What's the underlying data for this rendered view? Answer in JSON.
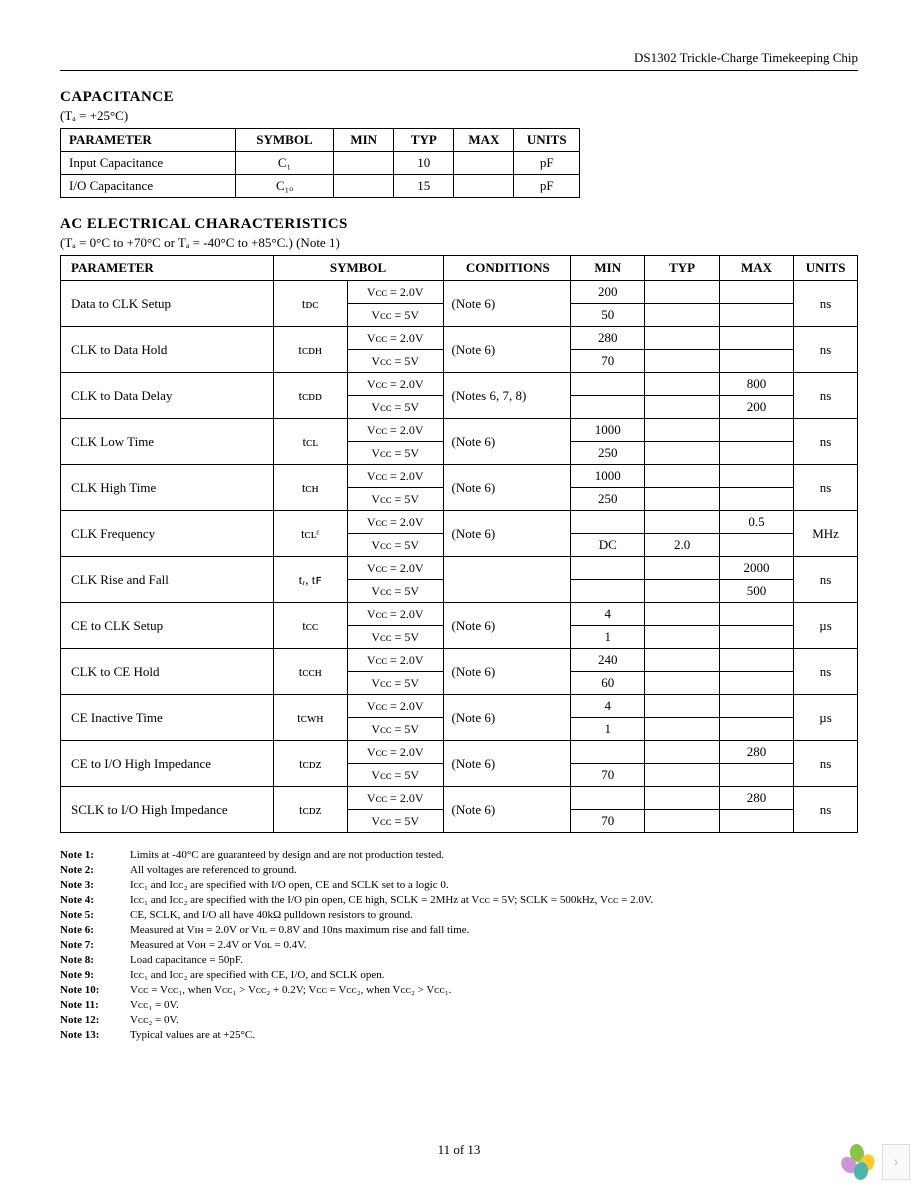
{
  "doc_header": "DS1302 Trickle-Charge Timekeeping Chip",
  "cap_section": {
    "title": "CAPACITANCE",
    "condition": "(Tₐ = +25°C)",
    "headers": [
      "PARAMETER",
      "SYMBOL",
      "MIN",
      "TYP",
      "MAX",
      "UNITS"
    ],
    "rows": [
      {
        "param": "Input Capacitance",
        "symbol": "C₁",
        "min": "",
        "typ": "10",
        "max": "",
        "units": "pF"
      },
      {
        "param": "I/O Capacitance",
        "symbol": "C₁ₒ",
        "min": "",
        "typ": "15",
        "max": "",
        "units": "pF"
      }
    ]
  },
  "ac_section": {
    "title": "AC ELECTRICAL CHARACTERISTICS",
    "condition": "(Tₐ = 0°C to +70°C or Tₐ = -40°C to +85°C.) (Note 1)",
    "headers": [
      "PARAMETER",
      "SYMBOL",
      "",
      "CONDITIONS",
      "MIN",
      "TYP",
      "MAX",
      "UNITS"
    ],
    "rows": [
      {
        "param": "Data to CLK Setup",
        "symbol": "tᴅᴄ",
        "vcc": [
          "Vᴄᴄ = 2.0V",
          "Vᴄᴄ = 5V"
        ],
        "cond": "(Note 6)",
        "min": [
          "200",
          "50"
        ],
        "typ": [
          "",
          ""
        ],
        "max": [
          "",
          ""
        ],
        "units": "ns"
      },
      {
        "param": "CLK to Data Hold",
        "symbol": "tᴄᴅʜ",
        "vcc": [
          "Vᴄᴄ = 2.0V",
          "Vᴄᴄ = 5V"
        ],
        "cond": "(Note 6)",
        "min": [
          "280",
          "70"
        ],
        "typ": [
          "",
          ""
        ],
        "max": [
          "",
          ""
        ],
        "units": "ns"
      },
      {
        "param": "CLK to Data Delay",
        "symbol": "tᴄᴅᴅ",
        "vcc": [
          "Vᴄᴄ = 2.0V",
          "Vᴄᴄ = 5V"
        ],
        "cond": "(Notes 6, 7, 8)",
        "min": [
          "",
          ""
        ],
        "typ": [
          "",
          ""
        ],
        "max": [
          "800",
          "200"
        ],
        "units": "ns"
      },
      {
        "param": "CLK Low Time",
        "symbol": "tᴄʟ",
        "vcc": [
          "Vᴄᴄ = 2.0V",
          "Vᴄᴄ = 5V"
        ],
        "cond": "(Note 6)",
        "min": [
          "1000",
          "250"
        ],
        "typ": [
          "",
          ""
        ],
        "max": [
          "",
          ""
        ],
        "units": "ns"
      },
      {
        "param": "CLK High Time",
        "symbol": "tᴄʜ",
        "vcc": [
          "Vᴄᴄ = 2.0V",
          "Vᴄᴄ = 5V"
        ],
        "cond": "(Note 6)",
        "min": [
          "1000",
          "250"
        ],
        "typ": [
          "",
          ""
        ],
        "max": [
          "",
          ""
        ],
        "units": "ns"
      },
      {
        "param": "CLK Frequency",
        "symbol": "tᴄʟᵋ",
        "vcc": [
          "Vᴄᴄ = 2.0V",
          "Vᴄᴄ = 5V"
        ],
        "cond": "(Note 6)",
        "min": [
          "",
          "DC"
        ],
        "typ": [
          "",
          "2.0"
        ],
        "max": [
          "0.5",
          ""
        ],
        "units": "MHz"
      },
      {
        "param": "CLK Rise and Fall",
        "symbol": "tᵣ, tꜰ",
        "vcc": [
          "Vᴄᴄ = 2.0V",
          "Vᴄᴄ = 5V"
        ],
        "cond": "",
        "min": [
          "",
          ""
        ],
        "typ": [
          "",
          ""
        ],
        "max": [
          "2000",
          "500"
        ],
        "units": "ns"
      },
      {
        "param": "CE to CLK Setup",
        "symbol": "tᴄᴄ",
        "vcc": [
          "Vᴄᴄ = 2.0V",
          "Vᴄᴄ = 5V"
        ],
        "cond": "(Note 6)",
        "min": [
          "4",
          "1"
        ],
        "typ": [
          "",
          ""
        ],
        "max": [
          "",
          ""
        ],
        "units": "µs"
      },
      {
        "param": "CLK to CE Hold",
        "symbol": "tᴄᴄʜ",
        "vcc": [
          "Vᴄᴄ = 2.0V",
          "Vᴄᴄ = 5V"
        ],
        "cond": "(Note 6)",
        "min": [
          "240",
          "60"
        ],
        "typ": [
          "",
          ""
        ],
        "max": [
          "",
          ""
        ],
        "units": "ns"
      },
      {
        "param": "CE Inactive Time",
        "symbol": "tᴄᴡʜ",
        "vcc": [
          "Vᴄᴄ = 2.0V",
          "Vᴄᴄ = 5V"
        ],
        "cond": "(Note 6)",
        "min": [
          "4",
          "1"
        ],
        "typ": [
          "",
          ""
        ],
        "max": [
          "",
          ""
        ],
        "units": "µs"
      },
      {
        "param": "CE to I/O High Impedance",
        "symbol": "tᴄᴅᴢ",
        "vcc": [
          "Vᴄᴄ = 2.0V",
          "Vᴄᴄ = 5V"
        ],
        "cond": "(Note 6)",
        "min": [
          "",
          "70"
        ],
        "typ": [
          "",
          ""
        ],
        "max": [
          "280",
          ""
        ],
        "units": "ns"
      },
      {
        "param": "SCLK to I/O High Impedance",
        "symbol": "tᴄᴅᴢ",
        "vcc": [
          "Vᴄᴄ = 2.0V",
          "Vᴄᴄ = 5V"
        ],
        "cond": "(Note 6)",
        "min": [
          "",
          "70"
        ],
        "typ": [
          "",
          ""
        ],
        "max": [
          "280",
          ""
        ],
        "units": "ns"
      }
    ]
  },
  "notes": [
    {
      "n": "Note 1:",
      "t": "Limits at -40°C are guaranteed by design and are not production tested."
    },
    {
      "n": "Note 2:",
      "t": "All voltages are referenced to ground."
    },
    {
      "n": "Note 3:",
      "t": "Iᴄᴄ₁ and Iᴄᴄ₂ are specified with I/O open, CE and SCLK set to a logic 0."
    },
    {
      "n": "Note 4:",
      "t": "Iᴄᴄ₁ and Iᴄᴄ₂ are specified with the I/O pin open, CE high, SCLK = 2MHz at Vᴄᴄ = 5V;  SCLK = 500kHz, Vᴄᴄ = 2.0V."
    },
    {
      "n": "Note 5:",
      "t": "CE, SCLK, and I/O all have 40kΩ pulldown resistors to ground."
    },
    {
      "n": "Note 6:",
      "t": "Measured at Vɪʜ = 2.0V or Vɪʟ = 0.8V and 10ns maximum rise and fall time."
    },
    {
      "n": "Note 7:",
      "t": "Measured at Vᴏʜ = 2.4V or Vᴏʟ = 0.4V."
    },
    {
      "n": "Note 8:",
      "t": "Load capacitance = 50pF."
    },
    {
      "n": "Note 9:",
      "t": "Iᴄᴄ₁ and Iᴄᴄ₂ are specified with CE, I/O, and SCLK open."
    },
    {
      "n": "Note 10:",
      "t": "Vᴄᴄ = Vᴄᴄ₁, when Vᴄᴄ₁ > Vᴄᴄ₂ + 0.2V; Vᴄᴄ = Vᴄᴄ₂, when Vᴄᴄ₂ > Vᴄᴄ₁."
    },
    {
      "n": "Note 11:",
      "t": "Vᴄᴄ₁ = 0V."
    },
    {
      "n": "Note 12:",
      "t": "Vᴄᴄ₂ = 0V."
    },
    {
      "n": "Note 13:",
      "t": "Typical values are at +25°C."
    }
  ],
  "page_number": "11 of 13",
  "arrow": "›"
}
